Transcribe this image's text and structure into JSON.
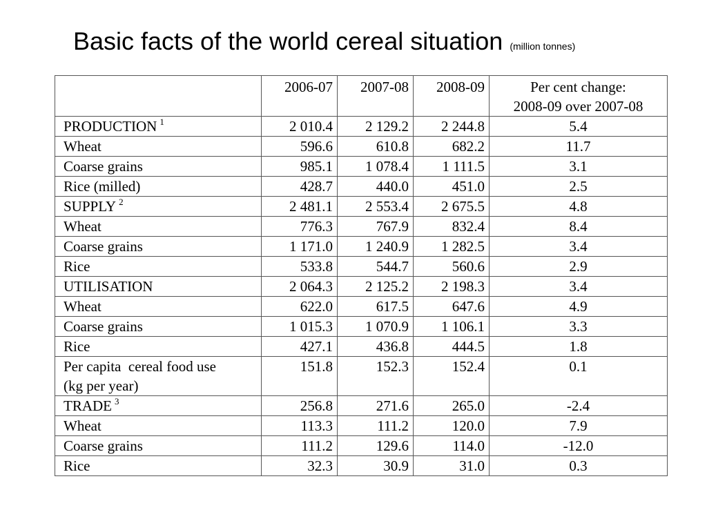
{
  "title": {
    "main": "Basic facts of the world cereal situation",
    "sub": "(million tonnes)"
  },
  "table": {
    "headers": [
      "",
      "2006-07",
      "2007-08",
      "2008-09",
      "Per cent change:",
      "2008-09 over 2007-08"
    ],
    "rows": [
      {
        "label": "PRODUCTION",
        "note": "1",
        "v1": "2 010.4",
        "v2": "2 129.2",
        "v3": "2 244.8",
        "chg": "5.4"
      },
      {
        "label": "Wheat",
        "v1": "596.6",
        "v2": "610.8",
        "v3": "682.2",
        "chg": "11.7"
      },
      {
        "label": "Coarse grains",
        "v1": "985.1",
        "v2": "1 078.4",
        "v3": "1 111.5",
        "chg": "3.1"
      },
      {
        "label": "Rice (milled)",
        "v1": "428.7",
        "v2": "440.0",
        "v3": "451.0",
        "chg": "2.5"
      },
      {
        "label": "SUPPLY",
        "note": "2",
        "v1": "2 481.1",
        "v2": "2 553.4",
        "v3": "2 675.5",
        "chg": "4.8"
      },
      {
        "label": "Wheat",
        "v1": "776.3",
        "v2": "767.9",
        "v3": "832.4",
        "chg": "8.4"
      },
      {
        "label": "Coarse grains",
        "v1": "1 171.0",
        "v2": "1 240.9",
        "v3": "1 282.5",
        "chg": "3.4"
      },
      {
        "label": "Rice",
        "v1": "533.8",
        "v2": "544.7",
        "v3": "560.6",
        "chg": "2.9"
      },
      {
        "label": "UTILISATION",
        "v1": "2 064.3",
        "v2": "2 125.2",
        "v3": "2 198.3",
        "chg": "3.4"
      },
      {
        "label": "Wheat",
        "v1": "622.0",
        "v2": "617.5",
        "v3": "647.6",
        "chg": "4.9"
      },
      {
        "label": "Coarse grains",
        "v1": "1 015.3",
        "v2": "1 070.9",
        "v3": "1 106.1",
        "chg": "3.3"
      },
      {
        "label": "Rice",
        "v1": "427.1",
        "v2": "436.8",
        "v3": "444.5",
        "chg": "1.8"
      },
      {
        "label": "Per capita  cereal food use",
        "label2": "(kg per year)",
        "v1": "151.8",
        "v2": "152.3",
        "v3": "152.4",
        "chg": "0.1"
      },
      {
        "label": "TRADE",
        "note": "3",
        "v1": "256.8",
        "v2": "271.6",
        "v3": "265.0",
        "chg": "-2.4"
      },
      {
        "label": "Wheat",
        "v1": "113.3",
        "v2": "111.2",
        "v3": "120.0",
        "chg": "7.9"
      },
      {
        "label": "Coarse grains",
        "v1": "111.2",
        "v2": "129.6",
        "v3": "114.0",
        "chg": "-12.0"
      },
      {
        "label": "Rice",
        "v1": "32.3",
        "v2": "30.9",
        "v3": "31.0",
        "chg": "0.3"
      }
    ]
  }
}
